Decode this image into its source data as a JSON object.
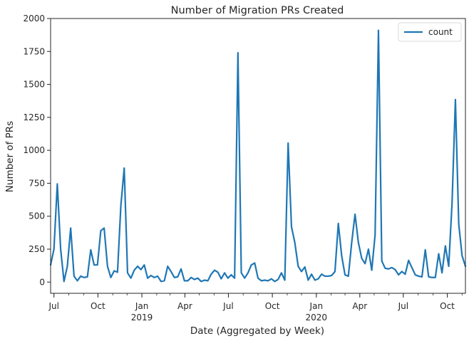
{
  "chart_data": {
    "type": "line",
    "title": "Number of Migration PRs Created",
    "xlabel": "Date (Aggregated by Week)",
    "ylabel": "Number of PRs",
    "ylim": [
      -85,
      2000
    ],
    "xlim": [
      "2018-06-24",
      "2020-11-08"
    ],
    "grid": false,
    "legend": {
      "position": "top-right",
      "entries": [
        "count"
      ]
    },
    "x_ticks": [
      {
        "label": "Jul",
        "sublabel": "",
        "date": "2018-07-01"
      },
      {
        "label": "Oct",
        "sublabel": "",
        "date": "2018-10-01"
      },
      {
        "label": "Jan",
        "sublabel": "2019",
        "date": "2019-01-01"
      },
      {
        "label": "Apr",
        "sublabel": "",
        "date": "2019-04-01"
      },
      {
        "label": "Jul",
        "sublabel": "",
        "date": "2019-07-01"
      },
      {
        "label": "Oct",
        "sublabel": "",
        "date": "2019-10-01"
      },
      {
        "label": "Jan",
        "sublabel": "2020",
        "date": "2020-01-01"
      },
      {
        "label": "Apr",
        "sublabel": "",
        "date": "2020-04-01"
      },
      {
        "label": "Jul",
        "sublabel": "",
        "date": "2020-07-01"
      },
      {
        "label": "Oct",
        "sublabel": "",
        "date": "2020-10-01"
      }
    ],
    "y_ticks": [
      0,
      250,
      500,
      750,
      1000,
      1250,
      1500,
      1750,
      2000
    ],
    "series": [
      {
        "name": "count",
        "color": "#1f77b4",
        "x": [
          "2018-06-24",
          "2018-07-01",
          "2018-07-08",
          "2018-07-15",
          "2018-07-22",
          "2018-07-29",
          "2018-08-05",
          "2018-08-12",
          "2018-08-19",
          "2018-08-26",
          "2018-09-02",
          "2018-09-09",
          "2018-09-16",
          "2018-09-23",
          "2018-09-30",
          "2018-10-07",
          "2018-10-14",
          "2018-10-21",
          "2018-10-28",
          "2018-11-04",
          "2018-11-11",
          "2018-11-18",
          "2018-11-25",
          "2018-12-02",
          "2018-12-09",
          "2018-12-16",
          "2018-12-23",
          "2018-12-30",
          "2019-01-06",
          "2019-01-13",
          "2019-01-20",
          "2019-01-27",
          "2019-02-03",
          "2019-02-10",
          "2019-02-17",
          "2019-02-24",
          "2019-03-03",
          "2019-03-10",
          "2019-03-17",
          "2019-03-24",
          "2019-03-31",
          "2019-04-07",
          "2019-04-14",
          "2019-04-21",
          "2019-04-28",
          "2019-05-05",
          "2019-05-12",
          "2019-05-19",
          "2019-05-26",
          "2019-06-02",
          "2019-06-09",
          "2019-06-16",
          "2019-06-23",
          "2019-06-30",
          "2019-07-07",
          "2019-07-14",
          "2019-07-21",
          "2019-07-28",
          "2019-08-04",
          "2019-08-11",
          "2019-08-18",
          "2019-08-25",
          "2019-09-01",
          "2019-09-08",
          "2019-09-15",
          "2019-09-22",
          "2019-09-29",
          "2019-10-06",
          "2019-10-13",
          "2019-10-20",
          "2019-10-27",
          "2019-11-03",
          "2019-11-10",
          "2019-11-17",
          "2019-11-24",
          "2019-12-01",
          "2019-12-08",
          "2019-12-15",
          "2019-12-22",
          "2019-12-29",
          "2020-01-05",
          "2020-01-12",
          "2020-01-19",
          "2020-01-26",
          "2020-02-02",
          "2020-02-09",
          "2020-02-16",
          "2020-02-23",
          "2020-03-01",
          "2020-03-08",
          "2020-03-15",
          "2020-03-22",
          "2020-03-29",
          "2020-04-05",
          "2020-04-12",
          "2020-04-19",
          "2020-04-26",
          "2020-05-03",
          "2020-05-10",
          "2020-05-17",
          "2020-05-24",
          "2020-05-31",
          "2020-06-07",
          "2020-06-14",
          "2020-06-21",
          "2020-06-28",
          "2020-07-05",
          "2020-07-12",
          "2020-07-19",
          "2020-07-26",
          "2020-08-02",
          "2020-08-09",
          "2020-08-16",
          "2020-08-23",
          "2020-08-30",
          "2020-09-06",
          "2020-09-13",
          "2020-09-20",
          "2020-09-27",
          "2020-10-04",
          "2020-10-11",
          "2020-10-18",
          "2020-10-25",
          "2020-11-01",
          "2020-11-08"
        ],
        "y": [
          130,
          250,
          745,
          250,
          5,
          120,
          410,
          45,
          10,
          45,
          35,
          40,
          245,
          130,
          130,
          390,
          410,
          120,
          35,
          85,
          75,
          580,
          865,
          70,
          30,
          90,
          120,
          95,
          130,
          30,
          50,
          35,
          45,
          5,
          10,
          120,
          80,
          35,
          40,
          100,
          10,
          10,
          35,
          20,
          30,
          5,
          15,
          10,
          60,
          90,
          75,
          25,
          70,
          30,
          55,
          30,
          1740,
          70,
          30,
          70,
          130,
          145,
          30,
          10,
          15,
          10,
          25,
          5,
          20,
          70,
          15,
          1055,
          420,
          300,
          120,
          80,
          115,
          15,
          60,
          15,
          25,
          60,
          45,
          45,
          50,
          80,
          445,
          200,
          55,
          45,
          300,
          515,
          300,
          180,
          140,
          250,
          90,
          360,
          1910,
          160,
          105,
          100,
          110,
          95,
          55,
          80,
          60,
          165,
          110,
          55,
          45,
          40,
          245,
          40,
          35,
          35,
          215,
          70,
          275,
          120,
          600,
          1385,
          440,
          200,
          120
        ]
      }
    ]
  }
}
